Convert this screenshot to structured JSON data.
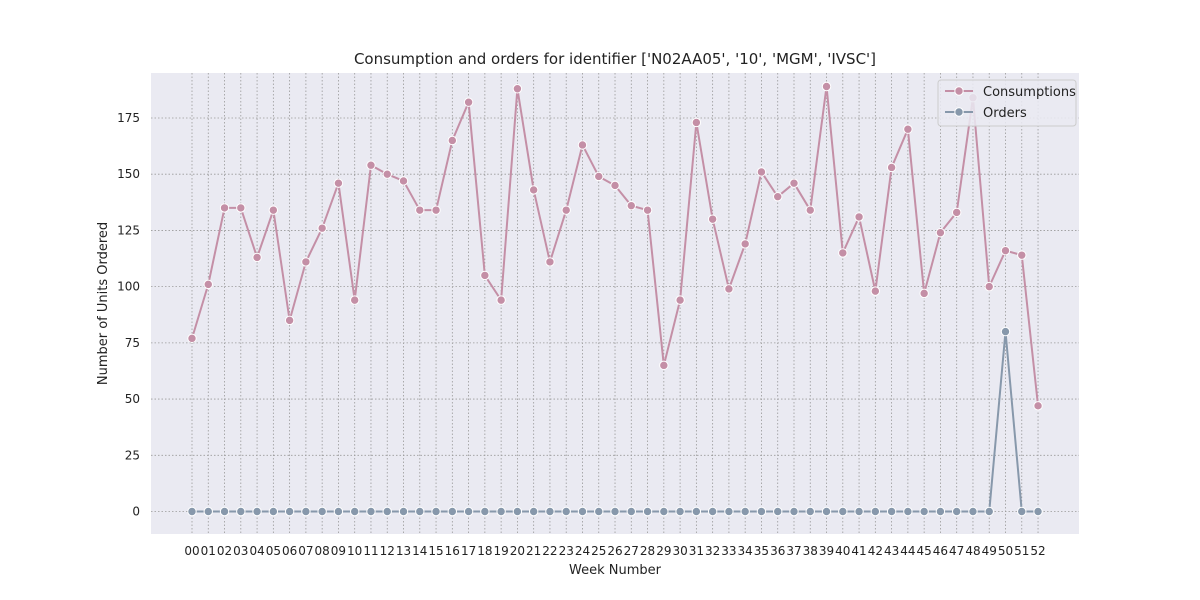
{
  "chart_data": {
    "type": "line",
    "title": "Consumption and orders for identifier ['N02AA05', '10', 'MGM', 'IVSC']",
    "xlabel": "Week Number",
    "ylabel": "Number of Units Ordered",
    "ylim": [
      -10,
      195
    ],
    "y_ticks": [
      0,
      25,
      50,
      75,
      100,
      125,
      150,
      175
    ],
    "grid": true,
    "legend_position": "top-right",
    "categories": [
      "00",
      "01",
      "02",
      "03",
      "04",
      "05",
      "06",
      "07",
      "08",
      "09",
      "10",
      "11",
      "12",
      "13",
      "14",
      "15",
      "16",
      "17",
      "18",
      "19",
      "20",
      "21",
      "22",
      "23",
      "24",
      "25",
      "26",
      "27",
      "28",
      "29",
      "30",
      "31",
      "32",
      "33",
      "34",
      "35",
      "36",
      "37",
      "38",
      "39",
      "40",
      "41",
      "42",
      "43",
      "44",
      "45",
      "46",
      "47",
      "48",
      "49",
      "50",
      "51",
      "52"
    ],
    "series": [
      {
        "name": "Consumptions",
        "color": "#c48fa6",
        "values": [
          77,
          101,
          135,
          135,
          113,
          134,
          85,
          111,
          126,
          146,
          94,
          154,
          150,
          147,
          134,
          134,
          165,
          182,
          105,
          94,
          188,
          143,
          111,
          134,
          163,
          149,
          145,
          136,
          134,
          65,
          94,
          173,
          130,
          99,
          119,
          151,
          140,
          146,
          134,
          189,
          115,
          131,
          98,
          153,
          170,
          97,
          124,
          133,
          184,
          100,
          116,
          114,
          47
        ]
      },
      {
        "name": "Orders",
        "color": "#8798ab",
        "values": [
          0,
          0,
          0,
          0,
          0,
          0,
          0,
          0,
          0,
          0,
          0,
          0,
          0,
          0,
          0,
          0,
          0,
          0,
          0,
          0,
          0,
          0,
          0,
          0,
          0,
          0,
          0,
          0,
          0,
          0,
          0,
          0,
          0,
          0,
          0,
          0,
          0,
          0,
          0,
          0,
          0,
          0,
          0,
          0,
          0,
          0,
          0,
          0,
          0,
          0,
          80,
          0,
          0
        ]
      }
    ]
  },
  "style": {
    "plot_background": "#eaeaf2",
    "grid_color": "#999999"
  }
}
